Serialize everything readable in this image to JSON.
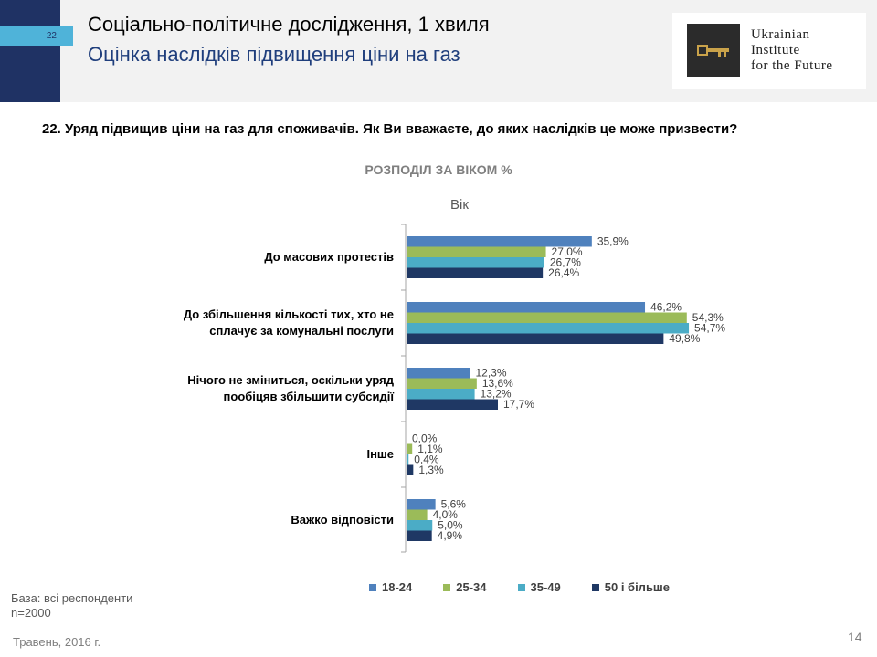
{
  "header": {
    "slide_badge": "22",
    "title": "Соціально-політичне дослідження, 1 хвиля",
    "subtitle": "Оцінка наслідків підвищення ціни на газ"
  },
  "logo": {
    "line1": "Ukrainian",
    "line2": "Institute",
    "line3": "for the Future"
  },
  "question": "22. Уряд підвищив ціни на газ для споживачів. Як Ви вважаєте, до яких наслідків це може призвести?",
  "footer": {
    "base": "База: всі респонденти",
    "n": "n=2000",
    "date": "Травень, 2016 г.",
    "page": "14"
  },
  "chart_data": {
    "type": "bar",
    "orientation": "horizontal",
    "title": "РОЗПОДІЛ ЗА  ВІКОМ %",
    "subtitle": "Вік",
    "categories": [
      [
        "До масових протестів"
      ],
      [
        "До збільшення кількості тих, хто не",
        "сплачує за комунальні послуги"
      ],
      [
        "Нічого не зміниться, оскільки уряд",
        "пообіцяв збільшити  субсидії"
      ],
      [
        "Інше"
      ],
      [
        "Важко відповісти"
      ]
    ],
    "series": [
      {
        "name": "18-24",
        "color": "#4f81bd",
        "values": [
          35.9,
          46.2,
          12.3,
          0.0,
          5.6
        ],
        "labels": [
          "35,9%",
          "46,2%",
          "12,3%",
          "0,0%",
          "5,6%"
        ]
      },
      {
        "name": "25-34",
        "color": "#9bbb59",
        "values": [
          27.0,
          54.3,
          13.6,
          1.1,
          4.0
        ],
        "labels": [
          "27,0%",
          "54,3%",
          "13,6%",
          "1,1%",
          "4,0%"
        ]
      },
      {
        "name": "35-49",
        "color": "#4bacc6",
        "values": [
          26.7,
          54.7,
          13.2,
          0.4,
          5.0
        ],
        "labels": [
          "26,7%",
          "54,7%",
          "13,2%",
          "0,4%",
          "5,0%"
        ]
      },
      {
        "name": "50 і більше",
        "color": "#1f3864",
        "values": [
          26.4,
          49.8,
          17.7,
          1.3,
          4.9
        ],
        "labels": [
          "26,4%",
          "49,8%",
          "17,7%",
          "1,3%",
          "4,9%"
        ]
      }
    ],
    "xlim": [
      0,
      60
    ],
    "legend_position": "bottom"
  }
}
